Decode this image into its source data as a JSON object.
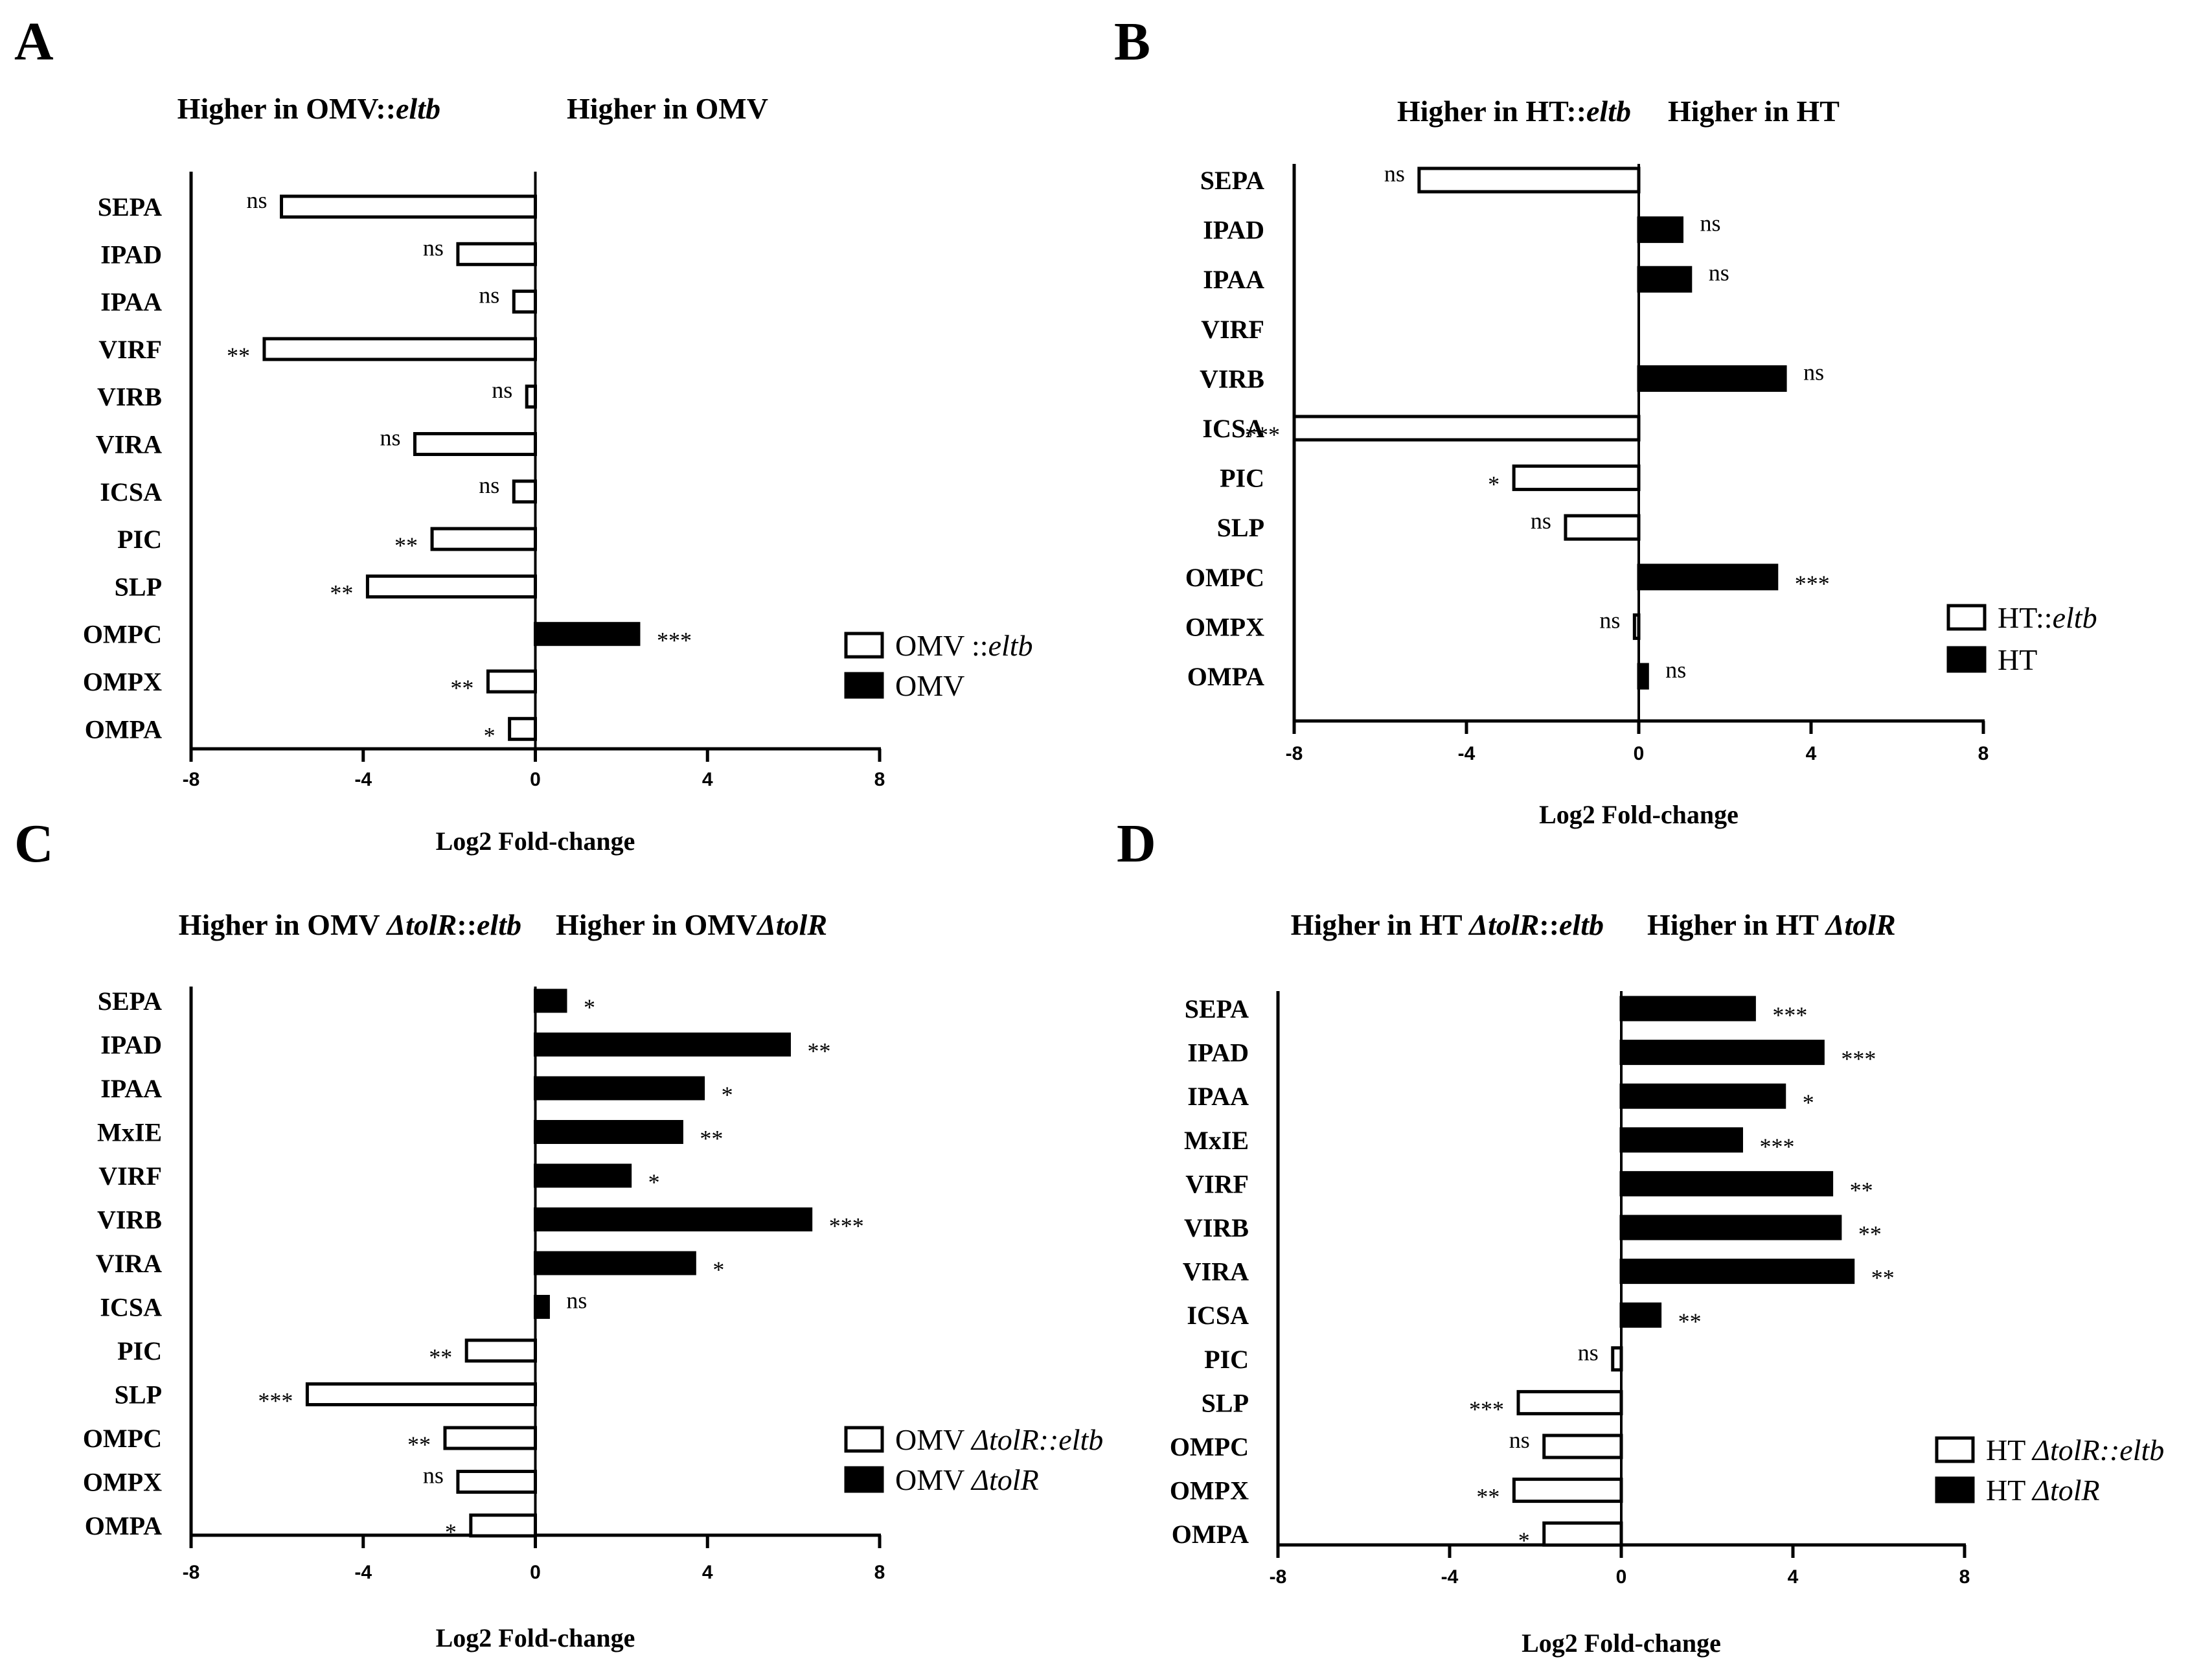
{
  "chart_data": [
    {
      "type": "bar",
      "panel": "A",
      "header_left": "Higher in OMV::",
      "header_left_italic": "eltb",
      "header_right": "Higher in OMV",
      "header_right_italic": "",
      "xlabel": "Log2 Fold-change",
      "xlim": [
        -8,
        8
      ],
      "xticks": [
        "-8",
        "-4",
        "0",
        "4",
        "8"
      ],
      "categories": [
        "SEPA",
        "IPAD",
        "IPAA",
        "VIRF",
        "VIRB",
        "VIRA",
        "ICSA",
        "PIC",
        "SLP",
        "OMPC",
        "OMPX",
        "OMPA"
      ],
      "values": [
        -5.9,
        -1.8,
        -0.5,
        -6.3,
        -0.2,
        -2.8,
        -0.5,
        -2.4,
        -3.9,
        2.4,
        -1.1,
        -0.6
      ],
      "significance": [
        "ns",
        "ns",
        "ns",
        "**",
        "ns",
        "ns",
        "ns",
        "**",
        "**",
        "***",
        "**",
        "*"
      ],
      "legend": [
        {
          "prefix": "OMV ::",
          "italic": "eltb",
          "fill": "#ffffff"
        },
        {
          "prefix": "OMV",
          "italic": "",
          "fill": "#000000"
        }
      ]
    },
    {
      "type": "bar",
      "panel": "B",
      "header_left": "Higher in HT::",
      "header_left_italic": "eltb",
      "header_right": "Higher in HT",
      "header_right_italic": "",
      "xlabel": "Log2 Fold-change",
      "xlim": [
        -8,
        8
      ],
      "xticks": [
        "-8",
        "-4",
        "0",
        "4",
        "8"
      ],
      "categories": [
        "SEPA",
        "IPAD",
        "IPAA",
        "VIRF",
        "VIRB",
        "ICSA",
        "PIC",
        "SLP",
        "OMPC",
        "OMPX",
        "OMPA"
      ],
      "values": [
        -5.1,
        1.0,
        1.2,
        0,
        3.4,
        -8.0,
        -2.9,
        -1.7,
        3.2,
        -0.1,
        0.2
      ],
      "significance": [
        "ns",
        "ns",
        "ns",
        "",
        "ns",
        "***",
        "*",
        "ns",
        "***",
        "ns",
        "ns"
      ],
      "legend": [
        {
          "prefix": "HT::",
          "italic": "eltb",
          "fill": "#ffffff"
        },
        {
          "prefix": "HT",
          "italic": "",
          "fill": "#000000"
        }
      ]
    },
    {
      "type": "bar",
      "panel": "C",
      "header_left": "Higher in OMV ",
      "header_left_italic": "ΔtolR",
      "header_left_suffix": "::",
      "header_left_suffix_italic": "eltb",
      "header_right": "Higher in OMV",
      "header_right_italic": "ΔtolR",
      "xlabel": "Log2 Fold-change",
      "xlim": [
        -8,
        8
      ],
      "xticks": [
        "-8",
        "-4",
        "0",
        "4",
        "8"
      ],
      "categories": [
        "SEPA",
        "IPAD",
        "IPAA",
        "MxIE",
        "VIRF",
        "VIRB",
        "VIRA",
        "ICSA",
        "PIC",
        "SLP",
        "OMPC",
        "OMPX",
        "OMPA"
      ],
      "values": [
        0.7,
        5.9,
        3.9,
        3.4,
        2.2,
        6.4,
        3.7,
        0.3,
        -1.6,
        -5.3,
        -2.1,
        -1.8,
        -1.5
      ],
      "significance": [
        "*",
        "**",
        "*",
        "**",
        "*",
        "***",
        "*",
        "ns",
        "**",
        "***",
        "**",
        "ns",
        "*"
      ],
      "legend": [
        {
          "prefix": "OMV ",
          "italic": "ΔtolR::eltb",
          "fill": "#ffffff"
        },
        {
          "prefix": "OMV ",
          "italic": "ΔtolR",
          "fill": "#000000"
        }
      ]
    },
    {
      "type": "bar",
      "panel": "D",
      "header_left": "Higher in HT ",
      "header_left_italic": "ΔtolR",
      "header_left_suffix": "::",
      "header_left_suffix_italic": "eltb",
      "header_right": "Higher in HT ",
      "header_right_italic": "ΔtolR",
      "xlabel": "Log2 Fold-change",
      "xlim": [
        -8,
        8
      ],
      "xticks": [
        "-8",
        "-4",
        "0",
        "4",
        "8"
      ],
      "categories": [
        "SEPA",
        "IPAD",
        "IPAA",
        "MxIE",
        "VIRF",
        "VIRB",
        "VIRA",
        "ICSA",
        "PIC",
        "SLP",
        "OMPC",
        "OMPX",
        "OMPA"
      ],
      "values": [
        3.1,
        4.7,
        3.8,
        2.8,
        4.9,
        5.1,
        5.4,
        0.9,
        -0.2,
        -2.4,
        -1.8,
        -2.5,
        -1.8
      ],
      "significance": [
        "***",
        "***",
        "*",
        "***",
        "**",
        "**",
        "**",
        "**",
        "ns",
        "***",
        "ns",
        "**",
        "*"
      ],
      "legend": [
        {
          "prefix": "HT ",
          "italic": "ΔtolR::eltb",
          "fill": "#ffffff"
        },
        {
          "prefix": "HT ",
          "italic": "ΔtolR",
          "fill": "#000000"
        }
      ]
    }
  ]
}
